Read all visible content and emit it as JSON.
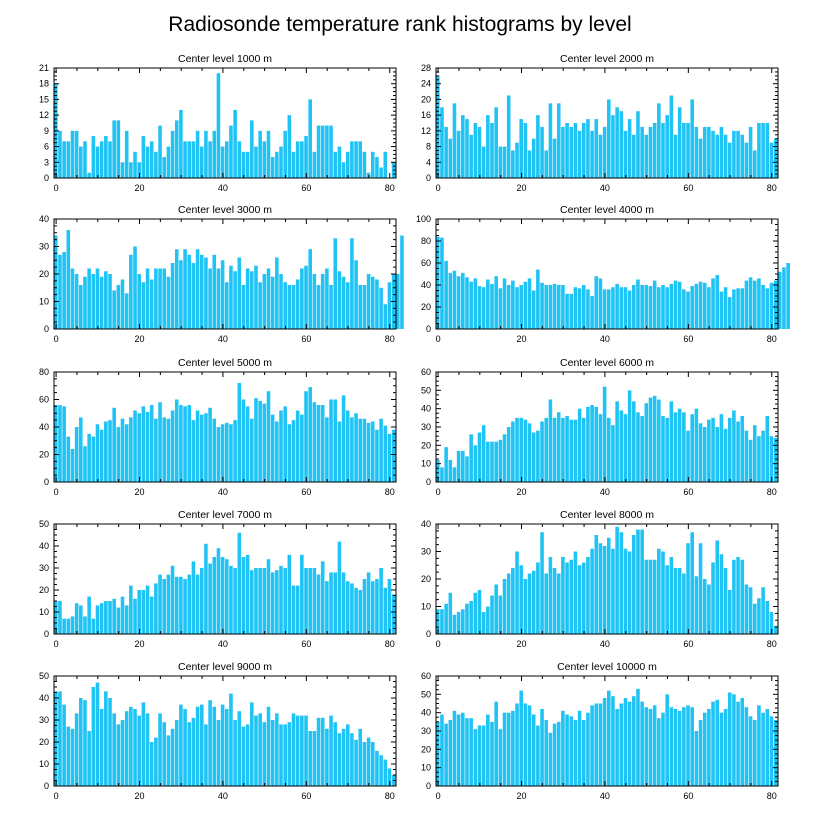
{
  "title": "Radiosonde temperature rank histograms by level",
  "chart_data": [
    {
      "type": "bar",
      "title": "Center level 1000 m",
      "ylim": [
        0,
        21
      ],
      "yticks": [
        0,
        3,
        6,
        9,
        12,
        15,
        18,
        21
      ],
      "xlim": [
        -0.5,
        81.5
      ],
      "xticks": [
        0,
        20,
        40,
        60,
        80
      ],
      "values": [
        18,
        9,
        7,
        7,
        9,
        9,
        6,
        7,
        1,
        8,
        6,
        7,
        8,
        7,
        11,
        11,
        3,
        9,
        3,
        5,
        3,
        8,
        6,
        7,
        5,
        10,
        4,
        6,
        9,
        11,
        13,
        7,
        7,
        7,
        9,
        6,
        9,
        7,
        9,
        20,
        6,
        7,
        10,
        13,
        7,
        5,
        5,
        11,
        6,
        9,
        7,
        9,
        4,
        5,
        6,
        9,
        12,
        5,
        7,
        7,
        8,
        15,
        5,
        10,
        10,
        10,
        10,
        5,
        6,
        3,
        5,
        7,
        7,
        7,
        5,
        1,
        5,
        4,
        2,
        5,
        0,
        3
      ]
    },
    {
      "type": "bar",
      "title": "Center level 2000 m",
      "ylim": [
        0,
        28
      ],
      "yticks": [
        0,
        4,
        8,
        12,
        16,
        20,
        24,
        28
      ],
      "xlim": [
        -0.5,
        81.5
      ],
      "xticks": [
        0,
        20,
        40,
        60,
        80
      ],
      "values": [
        26,
        18,
        13,
        10,
        19,
        12,
        16,
        15,
        11,
        14,
        13,
        8,
        16,
        14,
        18,
        8,
        8,
        21,
        7,
        9,
        15,
        14,
        7,
        10,
        16,
        13,
        7,
        19,
        10,
        19,
        13,
        14,
        13,
        14,
        12,
        14,
        15,
        12,
        15,
        11,
        13,
        20,
        16,
        18,
        17,
        12,
        15,
        11,
        17,
        13,
        11,
        13,
        14,
        19,
        14,
        16,
        21,
        11,
        18,
        14,
        14,
        20,
        13,
        10,
        13,
        13,
        12,
        11,
        13,
        11,
        9,
        12,
        12,
        11,
        9,
        13,
        7,
        14,
        14,
        14,
        9,
        10
      ]
    },
    {
      "type": "bar",
      "title": "Center level 3000 m",
      "ylim": [
        0,
        40
      ],
      "yticks": [
        0,
        10,
        20,
        30,
        40
      ],
      "xlim": [
        -0.5,
        81.5
      ],
      "xticks": [
        0,
        20,
        40,
        60,
        80
      ],
      "values": [
        34,
        27,
        28,
        36,
        22,
        20,
        16,
        19,
        22,
        20,
        22,
        19,
        21,
        20,
        14,
        16,
        18,
        13,
        27,
        30,
        20,
        17,
        22,
        18,
        22,
        22,
        22,
        19,
        24,
        29,
        25,
        29,
        27,
        24,
        29,
        27,
        26,
        22,
        27,
        22,
        25,
        17,
        23,
        21,
        26,
        16,
        22,
        21,
        23,
        17,
        20,
        22,
        19,
        26,
        20,
        17,
        16,
        16,
        18,
        22,
        23,
        29,
        20,
        16,
        20,
        22,
        16,
        33,
        21,
        19,
        17,
        33,
        25,
        16,
        16,
        20,
        19,
        18,
        15,
        9,
        17,
        20,
        20,
        34
      ]
    },
    {
      "type": "bar",
      "title": "Center level 4000 m",
      "ylim": [
        0,
        100
      ],
      "yticks": [
        0,
        20,
        40,
        60,
        80,
        100
      ],
      "xlim": [
        -0.5,
        81.5
      ],
      "xticks": [
        0,
        20,
        40,
        60,
        80
      ],
      "values": [
        84,
        83,
        62,
        51,
        53,
        48,
        51,
        47,
        43,
        46,
        39,
        38,
        45,
        41,
        48,
        37,
        46,
        40,
        44,
        38,
        40,
        43,
        46,
        35,
        54,
        42,
        40,
        40,
        41,
        40,
        40,
        32,
        32,
        38,
        37,
        40,
        36,
        30,
        48,
        46,
        36,
        36,
        38,
        41,
        38,
        38,
        35,
        40,
        45,
        40,
        40,
        39,
        44,
        38,
        40,
        38,
        41,
        44,
        43,
        36,
        34,
        39,
        41,
        43,
        42,
        38,
        46,
        49,
        34,
        38,
        29,
        36,
        37,
        37,
        44,
        47,
        44,
        46,
        40,
        37,
        42,
        44,
        52,
        56,
        60
      ]
    },
    {
      "type": "bar",
      "title": "Center level 5000 m",
      "ylim": [
        0,
        80
      ],
      "yticks": [
        0,
        20,
        40,
        60,
        80
      ],
      "xlim": [
        -0.5,
        81.5
      ],
      "xticks": [
        0,
        20,
        40,
        60,
        80
      ],
      "values": [
        56,
        56,
        55,
        33,
        24,
        40,
        47,
        26,
        35,
        33,
        42,
        38,
        44,
        45,
        54,
        40,
        46,
        42,
        47,
        52,
        50,
        55,
        51,
        56,
        46,
        58,
        47,
        46,
        52,
        60,
        56,
        55,
        56,
        45,
        52,
        49,
        50,
        54,
        46,
        40,
        42,
        43,
        42,
        45,
        72,
        60,
        55,
        46,
        61,
        59,
        57,
        66,
        49,
        44,
        52,
        55,
        42,
        45,
        52,
        49,
        66,
        69,
        58,
        56,
        56,
        47,
        60,
        60,
        44,
        63,
        52,
        47,
        50,
        46,
        46,
        43,
        44,
        38,
        46,
        41,
        35,
        38
      ]
    },
    {
      "type": "bar",
      "title": "Center level 6000 m",
      "ylim": [
        0,
        60
      ],
      "yticks": [
        0,
        10,
        20,
        30,
        40,
        50,
        60
      ],
      "xlim": [
        -0.5,
        81.5
      ],
      "xticks": [
        0,
        20,
        40,
        60,
        80
      ],
      "values": [
        12,
        8,
        19,
        12,
        8,
        17,
        17,
        14,
        26,
        20,
        27,
        31,
        22,
        22,
        22,
        23,
        26,
        30,
        33,
        35,
        35,
        34,
        32,
        27,
        28,
        33,
        35,
        45,
        35,
        38,
        35,
        36,
        34,
        34,
        40,
        35,
        41,
        42,
        41,
        37,
        52,
        35,
        31,
        44,
        39,
        37,
        50,
        44,
        38,
        36,
        43,
        46,
        47,
        45,
        36,
        35,
        44,
        38,
        40,
        38,
        28,
        37,
        40,
        32,
        30,
        34,
        35,
        30,
        37,
        29,
        35,
        39,
        33,
        36,
        28,
        23,
        31,
        25,
        28,
        36,
        25,
        24
      ]
    },
    {
      "type": "bar",
      "title": "Center level 7000 m",
      "ylim": [
        0,
        50
      ],
      "yticks": [
        0,
        10,
        20,
        30,
        40,
        50
      ],
      "xlim": [
        -0.5,
        81.5
      ],
      "xticks": [
        0,
        20,
        40,
        60,
        80
      ],
      "values": [
        15,
        15,
        7,
        7,
        8,
        14,
        13,
        8,
        17,
        7,
        13,
        14,
        15,
        15,
        16,
        12,
        17,
        13,
        22,
        16,
        20,
        20,
        22,
        17,
        23,
        27,
        25,
        27,
        31,
        26,
        26,
        25,
        27,
        33,
        27,
        30,
        41,
        32,
        35,
        39,
        35,
        34,
        31,
        30,
        46,
        35,
        36,
        29,
        30,
        30,
        30,
        34,
        28,
        29,
        31,
        30,
        36,
        22,
        22,
        36,
        30,
        30,
        30,
        27,
        33,
        24,
        28,
        28,
        42,
        28,
        24,
        23,
        21,
        20,
        25,
        28,
        24,
        25,
        30,
        21,
        25,
        18
      ]
    },
    {
      "type": "bar",
      "title": "Center level 8000 m",
      "ylim": [
        0,
        40
      ],
      "yticks": [
        0,
        10,
        20,
        30,
        40
      ],
      "xlim": [
        -0.5,
        81.5
      ],
      "xticks": [
        0,
        20,
        40,
        60,
        80
      ],
      "values": [
        9,
        9,
        11,
        15,
        7,
        8,
        9,
        11,
        12,
        15,
        16,
        8,
        10,
        14,
        18,
        14,
        20,
        22,
        24,
        30,
        25,
        20,
        22,
        23,
        26,
        37,
        22,
        28,
        24,
        22,
        28,
        26,
        27,
        30,
        25,
        26,
        28,
        31,
        36,
        33,
        32,
        35,
        31,
        39,
        37,
        31,
        30,
        36,
        38,
        38,
        27,
        27,
        27,
        31,
        30,
        25,
        28,
        24,
        24,
        22,
        33,
        37,
        21,
        33,
        20,
        18,
        26,
        34,
        29,
        24,
        16,
        27,
        28,
        27,
        18,
        17,
        11,
        13,
        17,
        12,
        8,
        3
      ]
    },
    {
      "type": "bar",
      "title": "Center level 9000 m",
      "ylim": [
        0,
        50
      ],
      "yticks": [
        0,
        10,
        20,
        30,
        40,
        50
      ],
      "xlim": [
        -0.5,
        81.5
      ],
      "xticks": [
        0,
        20,
        40,
        60,
        80
      ],
      "values": [
        43,
        43,
        37,
        27,
        26,
        33,
        40,
        39,
        25,
        45,
        47,
        35,
        43,
        40,
        33,
        28,
        30,
        34,
        36,
        35,
        32,
        38,
        33,
        20,
        22,
        33,
        29,
        23,
        26,
        30,
        37,
        35,
        29,
        31,
        36,
        37,
        28,
        39,
        36,
        30,
        37,
        35,
        42,
        30,
        34,
        27,
        28,
        38,
        32,
        33,
        29,
        36,
        30,
        33,
        28,
        28,
        29,
        33,
        32,
        32,
        32,
        25,
        25,
        31,
        31,
        26,
        32,
        29,
        24,
        26,
        28,
        24,
        21,
        26,
        20,
        22,
        20,
        16,
        14,
        12,
        8,
        5
      ]
    },
    {
      "type": "bar",
      "title": "Center level 10000 m",
      "ylim": [
        0,
        60
      ],
      "yticks": [
        0,
        10,
        20,
        30,
        40,
        50,
        60
      ],
      "xlim": [
        -0.5,
        81.5
      ],
      "xticks": [
        0,
        20,
        40,
        60,
        80
      ],
      "values": [
        35,
        39,
        34,
        36,
        41,
        39,
        40,
        37,
        37,
        31,
        33,
        33,
        39,
        35,
        46,
        31,
        40,
        40,
        41,
        45,
        52,
        45,
        44,
        39,
        33,
        42,
        36,
        29,
        34,
        35,
        41,
        39,
        38,
        36,
        41,
        36,
        40,
        44,
        45,
        45,
        48,
        52,
        49,
        42,
        45,
        48,
        46,
        49,
        53,
        46,
        43,
        42,
        44,
        37,
        40,
        50,
        43,
        42,
        41,
        43,
        44,
        43,
        30,
        36,
        40,
        42,
        46,
        47,
        40,
        42,
        51,
        50,
        46,
        48,
        43,
        38,
        36,
        44,
        40,
        42,
        38,
        36
      ]
    }
  ]
}
